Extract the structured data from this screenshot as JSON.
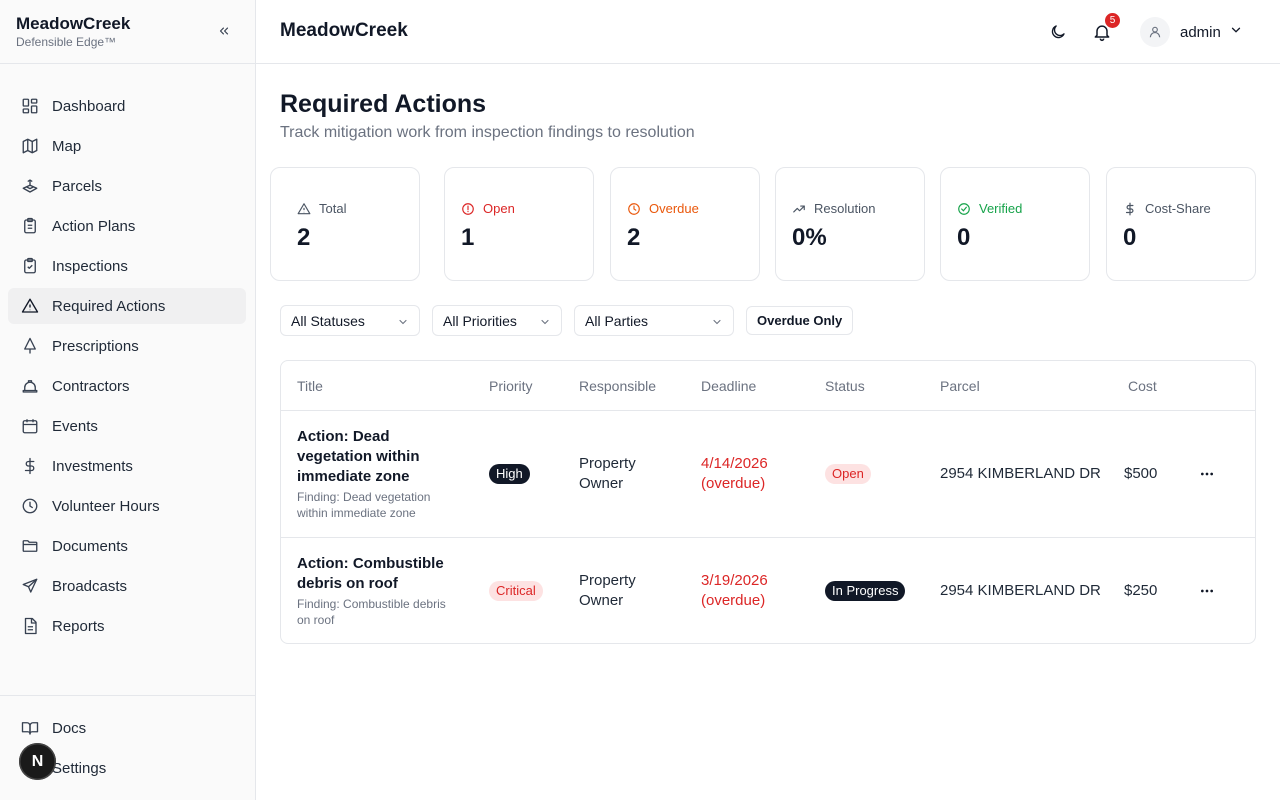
{
  "brand": {
    "name": "MeadowCreek",
    "tagline": "Defensible Edge™"
  },
  "sidebar": {
    "items": [
      {
        "label": "Dashboard",
        "icon": "dashboard-icon"
      },
      {
        "label": "Map",
        "icon": "map-icon"
      },
      {
        "label": "Parcels",
        "icon": "parcels-icon"
      },
      {
        "label": "Action Plans",
        "icon": "clipboard-icon"
      },
      {
        "label": "Inspections",
        "icon": "clipboard-check-icon"
      },
      {
        "label": "Required Actions",
        "icon": "warning-triangle-icon",
        "active": true
      },
      {
        "label": "Prescriptions",
        "icon": "tree-icon"
      },
      {
        "label": "Contractors",
        "icon": "hard-hat-icon"
      },
      {
        "label": "Events",
        "icon": "calendar-icon"
      },
      {
        "label": "Investments",
        "icon": "dollar-icon"
      },
      {
        "label": "Volunteer Hours",
        "icon": "clock-icon"
      },
      {
        "label": "Documents",
        "icon": "folder-icon"
      },
      {
        "label": "Broadcasts",
        "icon": "send-icon"
      },
      {
        "label": "Reports",
        "icon": "report-icon"
      }
    ],
    "bottom": [
      {
        "label": "Docs",
        "icon": "book-icon"
      },
      {
        "label": "Settings",
        "icon": "gear-icon"
      }
    ],
    "badge_letter": "N"
  },
  "header": {
    "title": "MeadowCreek",
    "notification_count": "5",
    "user": "admin"
  },
  "page": {
    "title": "Required Actions",
    "subtitle": "Track mitigation work from inspection findings to resolution"
  },
  "stats": [
    {
      "label": "Total",
      "value": "2",
      "icon": "warning-triangle-icon",
      "color": "#4b5563"
    },
    {
      "label": "Open",
      "value": "1",
      "icon": "alert-circle-icon",
      "color": "#dc2626"
    },
    {
      "label": "Overdue",
      "value": "2",
      "icon": "clock-icon",
      "color": "#ea580c"
    },
    {
      "label": "Resolution",
      "value": "0%",
      "icon": "trending-up-icon",
      "color": "#4b5563"
    },
    {
      "label": "Verified",
      "value": "0",
      "icon": "check-circle-icon",
      "color": "#16a34a"
    },
    {
      "label": "Cost-Share",
      "value": "0",
      "icon": "dollar-icon",
      "color": "#4b5563"
    }
  ],
  "filters": {
    "status": "All Statuses",
    "priority": "All Priorities",
    "party": "All Parties",
    "overdue_button": "Overdue Only"
  },
  "table": {
    "columns": [
      "Title",
      "Priority",
      "Responsible",
      "Deadline",
      "Status",
      "Parcel",
      "Cost"
    ],
    "rows": [
      {
        "title": "Action: Dead vegetation within immediate zone",
        "finding": "Finding: Dead vegetation within immediate zone",
        "priority": "High",
        "responsible": "Property Owner",
        "deadline": "4/14/2026 (overdue)",
        "status": "Open",
        "parcel": "2954 KIMBERLAND DR",
        "cost": "$500"
      },
      {
        "title": "Action: Combustible debris on roof",
        "finding": "Finding: Combustible debris on roof",
        "priority": "Critical",
        "responsible": "Property Owner",
        "deadline": "3/19/2026 (overdue)",
        "status": "In Progress",
        "parcel": "2954 KIMBERLAND DR",
        "cost": "$250"
      }
    ]
  }
}
